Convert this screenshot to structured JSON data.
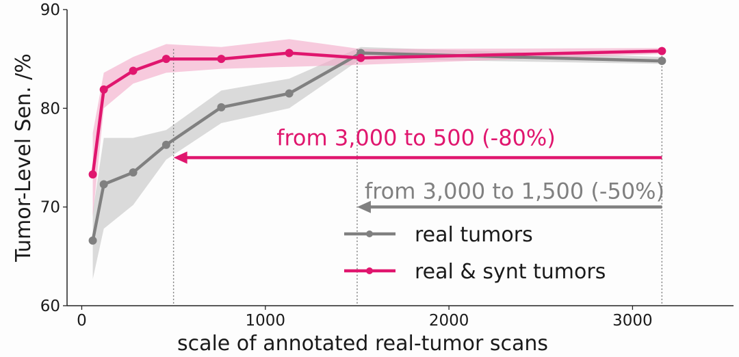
{
  "chart_data": {
    "type": "line",
    "xlabel": "scale of annotated real-tumor scans",
    "ylabel": "Tumor-Level Sen. /%",
    "xlim": [
      -80,
      3550
    ],
    "ylim": [
      60,
      90
    ],
    "x_ticks": [
      0,
      1000,
      2000,
      3000
    ],
    "x_tick_labels": [
      "0",
      "1000",
      "2000",
      "3000"
    ],
    "y_ticks": [
      60,
      70,
      80,
      90
    ],
    "y_tick_labels": [
      "60",
      "70",
      "80",
      "90"
    ],
    "grid": false,
    "legend_position": "bottom-right",
    "series": [
      {
        "name": "real tumors",
        "color": "#808080",
        "band_color": "#c8c8c8",
        "x": [
          60,
          120,
          280,
          460,
          760,
          1130,
          1520,
          3160
        ],
        "values": [
          66.6,
          72.3,
          73.5,
          76.3,
          80.1,
          81.5,
          85.6,
          84.8
        ],
        "lower": [
          62.7,
          67.8,
          70.2,
          74.8,
          78.5,
          80.0,
          85.0,
          84.5
        ],
        "upper": [
          69.5,
          77.0,
          77.0,
          77.8,
          81.8,
          83.0,
          86.2,
          85.2
        ]
      },
      {
        "name": "real & synt tumors",
        "color": "#e0166e",
        "band_color": "#f4a8c8",
        "x": [
          60,
          120,
          280,
          460,
          760,
          1130,
          1520,
          3160
        ],
        "values": [
          73.3,
          81.9,
          83.8,
          85.0,
          85.0,
          85.6,
          85.1,
          85.8
        ],
        "lower": [
          69.0,
          80.0,
          82.5,
          83.6,
          84.0,
          84.2,
          84.4,
          85.5
        ],
        "upper": [
          77.5,
          83.6,
          85.2,
          86.5,
          86.2,
          87.0,
          86.0,
          86.1
        ]
      }
    ],
    "reference_lines_x": [
      500,
      1500,
      3160
    ],
    "annotations": [
      {
        "text": "from 3,000 to 500 (-80%)",
        "color": "#e0166e",
        "arrow_from_x": 3160,
        "arrow_to_x": 500,
        "y": 75.0
      },
      {
        "text": "from 3,000 to 1,500 (-50%)",
        "color": "#808080",
        "arrow_from_x": 3160,
        "arrow_to_x": 1500,
        "y": 70.0
      }
    ]
  }
}
